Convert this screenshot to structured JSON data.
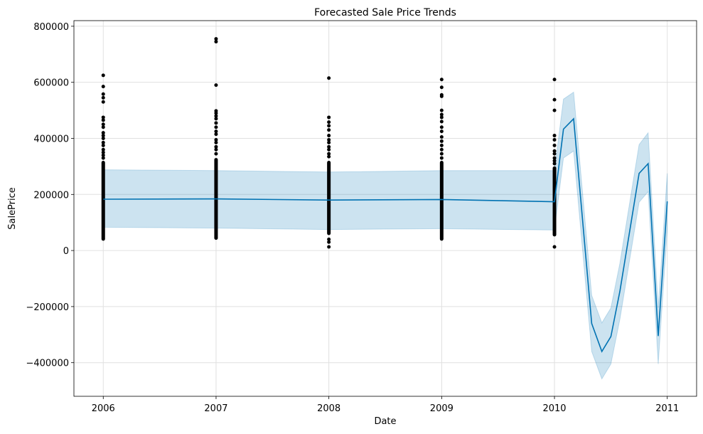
{
  "chart_data": {
    "type": "line",
    "title": "Forecasted Sale Price Trends",
    "xlabel": "Date",
    "ylabel": "SalePrice",
    "xlim": [
      2005.74,
      2011.26
    ],
    "ylim": [
      -520000,
      820000
    ],
    "grid": true,
    "x_ticks": [
      2006,
      2007,
      2008,
      2009,
      2010,
      2011
    ],
    "x_tick_labels": [
      "2006",
      "2007",
      "2008",
      "2009",
      "2010",
      "2011"
    ],
    "y_ticks": [
      -400000,
      -200000,
      0,
      200000,
      400000,
      600000,
      800000
    ],
    "y_tick_labels": [
      "−400000",
      "−200000",
      "0",
      "200000",
      "400000",
      "600000",
      "800000"
    ],
    "colors": {
      "line": "#0072b2",
      "band": "#0072b2",
      "points": "#000000",
      "grid": "#e0e0e0"
    },
    "series": [
      {
        "kind": "forecast",
        "x": [
          2006.0,
          2007.0,
          2008.0,
          2009.0,
          2010.0,
          2010.08,
          2010.17,
          2010.33,
          2010.42,
          2010.5,
          2010.58,
          2010.75,
          2010.83,
          2010.92,
          2011.0
        ],
        "values": [
          183000,
          184000,
          180000,
          182000,
          174000,
          433000,
          470000,
          -260000,
          -360000,
          -307000,
          -145000,
          275000,
          310000,
          -305000,
          175000
        ],
        "lower": [
          83000,
          80000,
          75000,
          78000,
          73000,
          330000,
          355000,
          -360000,
          -458000,
          -405000,
          -245000,
          172000,
          210000,
          -405000,
          75000
        ],
        "upper": [
          288000,
          285000,
          280000,
          285000,
          285000,
          540000,
          565000,
          -160000,
          -258000,
          -205000,
          -45000,
          378000,
          420000,
          -205000,
          275000
        ]
      },
      {
        "kind": "observed",
        "groups": [
          {
            "x": 2006.0,
            "bulk": [
              35000,
              320000
            ],
            "sparse": [
              330000,
              340000,
              350000,
              360000,
              375000,
              385000,
              400000,
              410000,
              420000,
              440000,
              450000,
              465000,
              475000,
              530000,
              545000,
              558000,
              585000,
              625000
            ]
          },
          {
            "x": 2007.0,
            "bulk": [
              38000,
              330000
            ],
            "sparse": [
              345000,
              360000,
              370000,
              385000,
              395000,
              415000,
              425000,
              440000,
              455000,
              470000,
              480000,
              490000,
              498000,
              590000,
              745000,
              755000
            ]
          },
          {
            "x": 2008.0,
            "bulk": [
              55000,
              320000
            ],
            "sparse": [
              13000,
              30000,
              40000,
              335000,
              345000,
              360000,
              370000,
              385000,
              395000,
              410000,
              430000,
              445000,
              458000,
              475000,
              615000
            ]
          },
          {
            "x": 2009.0,
            "bulk": [
              35000,
              320000
            ],
            "sparse": [
              330000,
              345000,
              360000,
              375000,
              390000,
              405000,
              425000,
              440000,
              460000,
              475000,
              485000,
              500000,
              550000,
              555000,
              582000,
              610000
            ]
          },
          {
            "x": 2010.0,
            "bulk": [
              50000,
              300000
            ],
            "sparse": [
              13000,
              310000,
              320000,
              330000,
              345000,
              355000,
              375000,
              395000,
              410000,
              500000,
              538000,
              610000
            ]
          }
        ]
      }
    ]
  }
}
